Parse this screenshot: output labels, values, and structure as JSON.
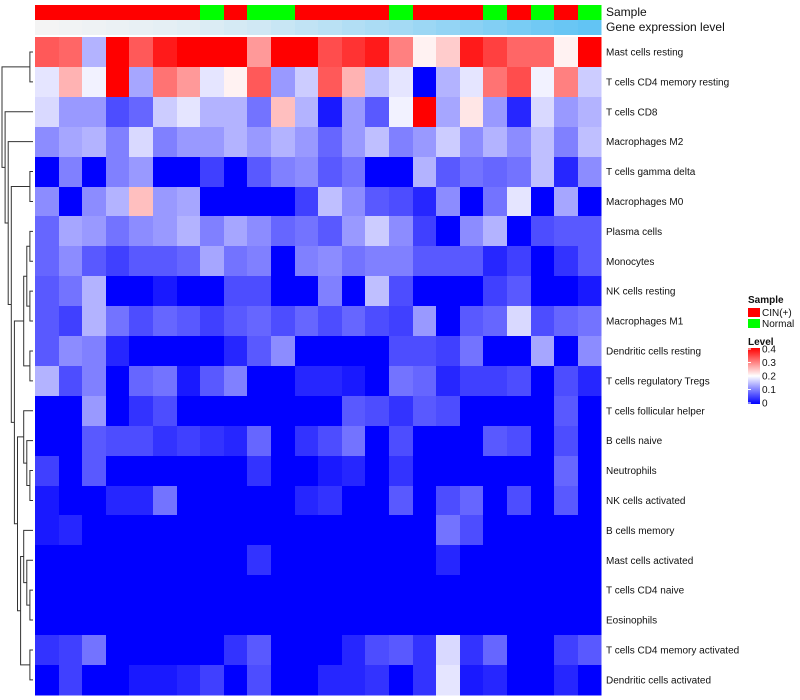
{
  "chart_data": {
    "type": "heatmap",
    "annotations": {
      "sample": {
        "title": "Sample",
        "legend_title": "Sample",
        "levels": [
          {
            "label": "CIN(+)",
            "color": "#ff0000"
          },
          {
            "label": "Normal",
            "color": "#00ff00"
          }
        ],
        "values": [
          "CIN(+)",
          "CIN(+)",
          "CIN(+)",
          "CIN(+)",
          "CIN(+)",
          "CIN(+)",
          "CIN(+)",
          "Normal",
          "CIN(+)",
          "Normal",
          "Normal",
          "CIN(+)",
          "CIN(+)",
          "CIN(+)",
          "CIN(+)",
          "Normal",
          "CIN(+)",
          "CIN(+)",
          "CIN(+)",
          "Normal",
          "CIN(+)",
          "Normal",
          "CIN(+)",
          "Normal"
        ]
      },
      "gene_expression": {
        "title": "Gene expression level",
        "color_low": "#f4f4f4",
        "color_high": "#62c4f4"
      }
    },
    "color_scale": {
      "title": "Level",
      "low_color": "#0000ff",
      "mid_color": "#ffffff",
      "high_color": "#ff0000",
      "min": 0,
      "max": 0.4,
      "ticks": [
        "0.4",
        "0.3",
        "0.2",
        "0.1",
        "0"
      ]
    },
    "rows": [
      "Mast cells resting",
      "T cells CD4 memory resting",
      "T cells CD8",
      "Macrophages M2",
      "T cells gamma delta",
      "Macrophages M0",
      "Plasma cells",
      "Monocytes",
      "NK cells resting",
      "Macrophages M1",
      "Dendritic cells resting",
      "T cells regulatory  Tregs",
      "T cells follicular helper",
      "B cells naive",
      "Neutrophils",
      "NK cells activated",
      "B cells memory",
      "Mast cells activated",
      "T cells CD4 naive",
      "Eosinophils",
      "T cells CD4 memory activated",
      "Dendritic cells activated"
    ],
    "values": [
      [
        0.33,
        0.32,
        0.14,
        0.4,
        0.33,
        0.38,
        0.4,
        0.4,
        0.4,
        0.28,
        0.4,
        0.4,
        0.34,
        0.36,
        0.38,
        0.3,
        0.21,
        0.24,
        0.38,
        0.35,
        0.32,
        0.32,
        0.21,
        0.4
      ],
      [
        0.18,
        0.26,
        0.19,
        0.4,
        0.13,
        0.31,
        0.28,
        0.18,
        0.21,
        0.33,
        0.12,
        0.16,
        0.33,
        0.26,
        0.15,
        0.18,
        0.0,
        0.14,
        0.18,
        0.31,
        0.34,
        0.19,
        0.3,
        0.16
      ],
      [
        0.17,
        0.12,
        0.12,
        0.06,
        0.08,
        0.16,
        0.18,
        0.14,
        0.14,
        0.09,
        0.25,
        0.14,
        0.02,
        0.12,
        0.07,
        0.19,
        0.4,
        0.13,
        0.22,
        0.12,
        0.03,
        0.17,
        0.12,
        0.14
      ],
      [
        0.11,
        0.13,
        0.14,
        0.1,
        0.17,
        0.1,
        0.12,
        0.12,
        0.14,
        0.12,
        0.14,
        0.12,
        0.08,
        0.12,
        0.15,
        0.1,
        0.12,
        0.16,
        0.11,
        0.14,
        0.11,
        0.15,
        0.1,
        0.15
      ],
      [
        0.0,
        0.1,
        0.0,
        0.1,
        0.12,
        0.0,
        0.0,
        0.05,
        0.0,
        0.07,
        0.1,
        0.11,
        0.07,
        0.09,
        0.0,
        0.0,
        0.14,
        0.07,
        0.09,
        0.08,
        0.09,
        0.15,
        0.03,
        0.11
      ],
      [
        0.11,
        0.0,
        0.11,
        0.14,
        0.25,
        0.12,
        0.13,
        0.0,
        0.0,
        0.0,
        0.0,
        0.05,
        0.15,
        0.11,
        0.07,
        0.06,
        0.03,
        0.11,
        0.0,
        0.09,
        0.18,
        0.0,
        0.13,
        0.0
      ],
      [
        0.08,
        0.13,
        0.12,
        0.09,
        0.11,
        0.12,
        0.14,
        0.1,
        0.13,
        0.11,
        0.08,
        0.09,
        0.07,
        0.12,
        0.16,
        0.11,
        0.05,
        0.0,
        0.11,
        0.14,
        0.0,
        0.06,
        0.07,
        0.07
      ],
      [
        0.08,
        0.11,
        0.07,
        0.05,
        0.07,
        0.07,
        0.08,
        0.13,
        0.09,
        0.1,
        0.0,
        0.1,
        0.11,
        0.09,
        0.1,
        0.1,
        0.07,
        0.07,
        0.07,
        0.03,
        0.05,
        0.0,
        0.04,
        0.07
      ],
      [
        0.07,
        0.09,
        0.14,
        0.0,
        0.0,
        0.02,
        0.0,
        0.0,
        0.06,
        0.06,
        0.0,
        0.0,
        0.1,
        0.0,
        0.15,
        0.06,
        0.0,
        0.0,
        0.0,
        0.05,
        0.07,
        0.0,
        0.0,
        0.02
      ],
      [
        0.07,
        0.05,
        0.14,
        0.09,
        0.06,
        0.08,
        0.07,
        0.05,
        0.07,
        0.08,
        0.06,
        0.08,
        0.06,
        0.08,
        0.06,
        0.05,
        0.12,
        0.0,
        0.07,
        0.08,
        0.17,
        0.06,
        0.08,
        0.09
      ],
      [
        0.07,
        0.11,
        0.1,
        0.03,
        0.0,
        0.0,
        0.0,
        0.0,
        0.03,
        0.07,
        0.11,
        0.0,
        0.0,
        0.0,
        0.0,
        0.06,
        0.06,
        0.05,
        0.09,
        0.0,
        0.0,
        0.13,
        0.0,
        0.11
      ],
      [
        0.14,
        0.06,
        0.1,
        0.0,
        0.08,
        0.09,
        0.02,
        0.07,
        0.1,
        0.0,
        0.0,
        0.03,
        0.03,
        0.02,
        0.0,
        0.09,
        0.08,
        0.03,
        0.05,
        0.05,
        0.06,
        0.0,
        0.06,
        0.03
      ],
      [
        0.0,
        0.0,
        0.12,
        0.0,
        0.04,
        0.06,
        0.0,
        0.0,
        0.0,
        0.0,
        0.0,
        0.0,
        0.0,
        0.07,
        0.06,
        0.04,
        0.07,
        0.06,
        0.0,
        0.0,
        0.0,
        0.0,
        0.07,
        0.0
      ],
      [
        0.0,
        0.0,
        0.07,
        0.06,
        0.06,
        0.04,
        0.05,
        0.04,
        0.03,
        0.08,
        0.0,
        0.04,
        0.06,
        0.09,
        0.0,
        0.06,
        0.0,
        0.0,
        0.0,
        0.07,
        0.06,
        0.0,
        0.06,
        0.0
      ],
      [
        0.05,
        0.0,
        0.07,
        0.0,
        0.0,
        0.0,
        0.0,
        0.0,
        0.0,
        0.04,
        0.0,
        0.0,
        0.02,
        0.03,
        0.0,
        0.04,
        0.0,
        0.0,
        0.0,
        0.0,
        0.0,
        0.0,
        0.08,
        0.0
      ],
      [
        0.02,
        0.0,
        0.0,
        0.03,
        0.03,
        0.09,
        0.0,
        0.0,
        0.0,
        0.0,
        0.0,
        0.03,
        0.04,
        0.0,
        0.0,
        0.07,
        0.0,
        0.06,
        0.08,
        0.0,
        0.06,
        0.0,
        0.07,
        0.0
      ],
      [
        0.02,
        0.03,
        0.0,
        0.0,
        0.0,
        0.0,
        0.0,
        0.0,
        0.0,
        0.0,
        0.0,
        0.0,
        0.0,
        0.0,
        0.0,
        0.0,
        0.0,
        0.09,
        0.06,
        0.0,
        0.0,
        0.0,
        0.0,
        0.0
      ],
      [
        0.0,
        0.0,
        0.0,
        0.0,
        0.0,
        0.0,
        0.0,
        0.0,
        0.0,
        0.04,
        0.0,
        0.0,
        0.0,
        0.0,
        0.0,
        0.0,
        0.0,
        0.03,
        0.0,
        0.0,
        0.0,
        0.0,
        0.0,
        0.0
      ],
      [
        0.0,
        0.0,
        0.0,
        0.0,
        0.0,
        0.0,
        0.0,
        0.0,
        0.0,
        0.0,
        0.0,
        0.0,
        0.0,
        0.0,
        0.0,
        0.0,
        0.0,
        0.0,
        0.0,
        0.0,
        0.0,
        0.0,
        0.0,
        0.0
      ],
      [
        0.0,
        0.0,
        0.0,
        0.0,
        0.0,
        0.0,
        0.0,
        0.0,
        0.0,
        0.0,
        0.0,
        0.0,
        0.0,
        0.0,
        0.0,
        0.0,
        0.0,
        0.0,
        0.0,
        0.0,
        0.0,
        0.0,
        0.0,
        0.0
      ],
      [
        0.04,
        0.05,
        0.09,
        0.0,
        0.0,
        0.0,
        0.0,
        0.0,
        0.04,
        0.07,
        0.0,
        0.0,
        0.0,
        0.03,
        0.06,
        0.07,
        0.04,
        0.17,
        0.04,
        0.08,
        0.0,
        0.0,
        0.05,
        0.07
      ],
      [
        0.0,
        0.05,
        0.0,
        0.0,
        0.02,
        0.02,
        0.03,
        0.05,
        0.0,
        0.06,
        0.0,
        0.0,
        0.03,
        0.03,
        0.04,
        0.0,
        0.04,
        0.18,
        0.02,
        0.03,
        0.0,
        0.0,
        0.03,
        0.0
      ]
    ],
    "gene_expression_values": [
      0.0,
      0.02,
      0.04,
      0.06,
      0.08,
      0.1,
      0.13,
      0.17,
      0.21,
      0.25,
      0.3,
      0.35,
      0.4,
      0.45,
      0.5,
      0.55,
      0.6,
      0.66,
      0.72,
      0.78,
      0.84,
      0.9,
      0.95,
      1.0
    ],
    "dendrogram_merges": [
      [
        -19,
        -20
      ],
      [
        -18,
        1
      ],
      [
        -17,
        2
      ],
      [
        -15,
        -16
      ],
      [
        -14,
        4
      ],
      [
        -13,
        5
      ],
      [
        -21,
        -22
      ],
      [
        7,
        3
      ],
      [
        6,
        8
      ],
      [
        -11,
        -12
      ],
      [
        -9,
        -10
      ],
      [
        -7,
        -8
      ],
      [
        11,
        12
      ],
      [
        10,
        13
      ],
      [
        9,
        14
      ],
      [
        -5,
        -6
      ],
      [
        15,
        16
      ],
      [
        -4,
        17
      ],
      [
        -3,
        18
      ],
      [
        -1,
        -2
      ],
      [
        20,
        19
      ]
    ]
  }
}
